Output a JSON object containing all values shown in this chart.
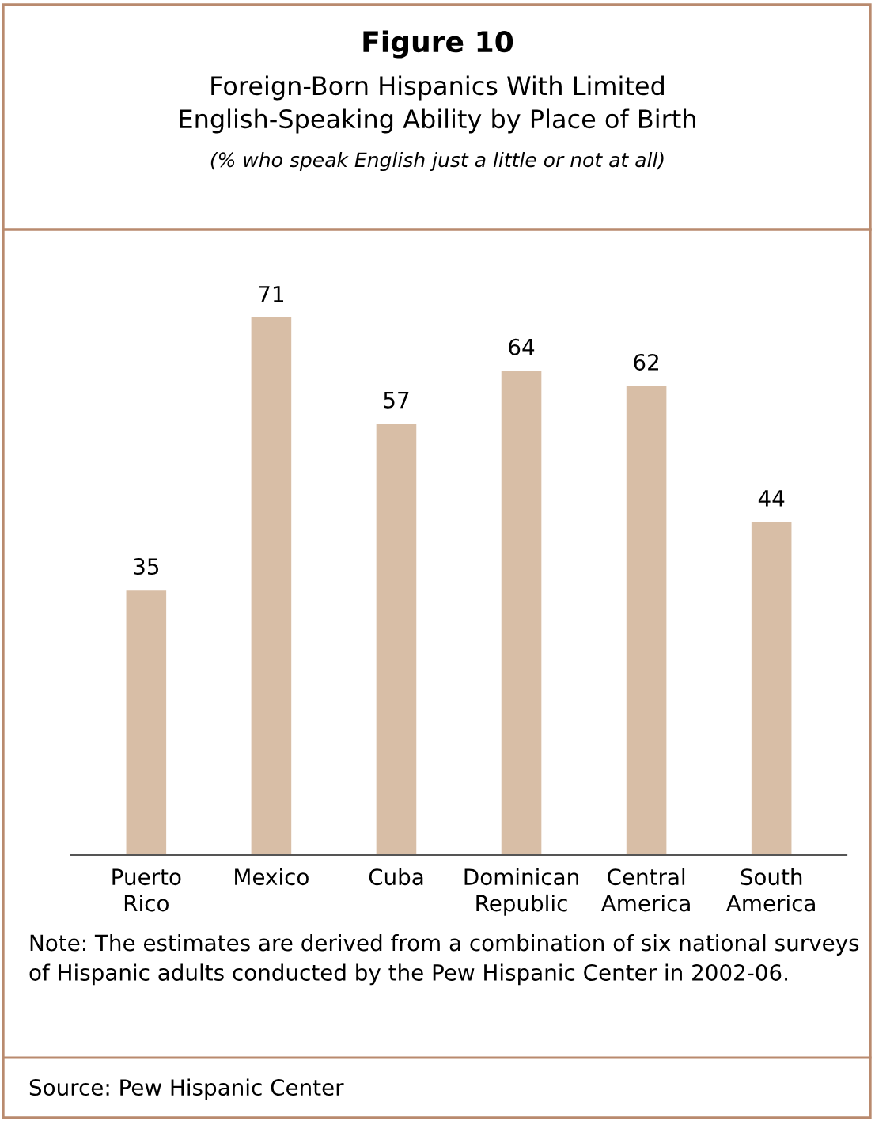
{
  "chart_data": {
    "type": "bar",
    "title": "Figure 10",
    "subtitle": "Foreign-Born Hispanics With Limited English-Speaking Ability by Place of Birth",
    "categories": [
      "Puerto Rico",
      "Mexico",
      "Cuba",
      "Dominican Republic",
      "Central America",
      "South America"
    ],
    "values": [
      35,
      71,
      57,
      64,
      62,
      44
    ],
    "color": "#d8bea6",
    "data_labels": true,
    "grid": false,
    "legend": false,
    "annotations": [
      "(% who speak English just a little or not at all)",
      "Note: The estimates are derived from a combination of six national surveys of Hispanic adults conducted by the Pew Hispanic Center in 2002-06.",
      "Source: Pew Hispanic Center"
    ]
  }
}
